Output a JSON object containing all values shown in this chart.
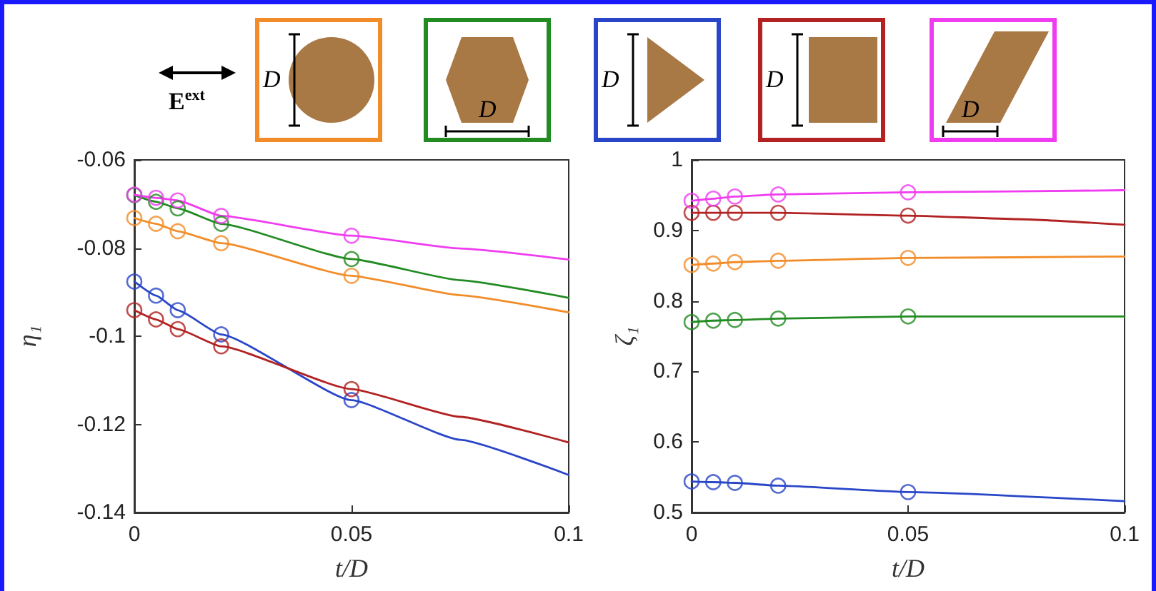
{
  "chart_data": [
    {
      "type": "line",
      "xlabel": "t/D",
      "ylabel": "η₁",
      "xlim": [
        0,
        0.1
      ],
      "ylim": [
        -0.14,
        -0.06
      ],
      "xticks": [
        0,
        0.05,
        0.1
      ],
      "yticks": [
        -0.14,
        -0.12,
        -0.1,
        -0.08,
        -0.06
      ],
      "marker": "circle",
      "line_style": "solid",
      "annotations": [
        "E$^{ext}$",
        "D",
        "D",
        "D",
        "D",
        "D"
      ],
      "series": [
        {
          "type": "scatter",
          "color": "#f28c28",
          "x": [
            0,
            0.005,
            0.01,
            0.02,
            0.05
          ],
          "values": [
            -0.0732,
            -0.0745,
            -0.0762,
            -0.0789,
            -0.0863
          ]
        },
        {
          "type": "line",
          "marker": "none",
          "color": "#f28c28",
          "x": [
            0,
            0.005,
            0.01,
            0.02,
            0.05,
            0.075,
            0.1
          ],
          "values": [
            -0.0732,
            -0.0745,
            -0.0762,
            -0.0789,
            -0.0863,
            -0.0907,
            -0.0946
          ]
        },
        {
          "type": "scatter",
          "color": "#228b22",
          "x": [
            0,
            0.005,
            0.01,
            0.02,
            0.05
          ],
          "values": [
            -0.068,
            -0.0695,
            -0.071,
            -0.0745,
            -0.0825
          ]
        },
        {
          "type": "line",
          "marker": "none",
          "color": "#228b22",
          "x": [
            0,
            0.005,
            0.01,
            0.02,
            0.05,
            0.075,
            0.1
          ],
          "values": [
            -0.068,
            -0.0695,
            -0.071,
            -0.0745,
            -0.0825,
            -0.0873,
            -0.0913
          ]
        },
        {
          "type": "scatter",
          "color": "#2a46c8",
          "x": [
            0,
            0.005,
            0.01,
            0.02,
            0.05
          ],
          "values": [
            -0.0876,
            -0.0908,
            -0.0941,
            -0.0996,
            -0.1145
          ]
        },
        {
          "type": "line",
          "marker": "none",
          "color": "#2a46c8",
          "x": [
            0,
            0.005,
            0.01,
            0.02,
            0.05,
            0.075,
            0.1
          ],
          "values": [
            -0.0876,
            -0.0908,
            -0.0941,
            -0.0996,
            -0.1145,
            -0.1235,
            -0.1315
          ]
        },
        {
          "type": "scatter",
          "color": "#b22222",
          "x": [
            0,
            0.005,
            0.01,
            0.02,
            0.05
          ],
          "values": [
            -0.0941,
            -0.0962,
            -0.0984,
            -0.1023,
            -0.112
          ]
        },
        {
          "type": "line",
          "marker": "none",
          "color": "#b22222",
          "x": [
            0,
            0.005,
            0.01,
            0.02,
            0.05,
            0.075,
            0.1
          ],
          "values": [
            -0.0941,
            -0.0962,
            -0.0984,
            -0.1023,
            -0.112,
            -0.1183,
            -0.1241
          ]
        },
        {
          "type": "scatter",
          "color": "#f03cf0",
          "x": [
            0,
            0.005,
            0.01,
            0.02,
            0.05
          ],
          "values": [
            -0.0679,
            -0.0686,
            -0.0692,
            -0.0727,
            -0.0772
          ]
        },
        {
          "type": "line",
          "marker": "none",
          "color": "#f03cf0",
          "x": [
            0,
            0.005,
            0.01,
            0.02,
            0.05,
            0.075,
            0.1
          ],
          "values": [
            -0.0679,
            -0.0686,
            -0.0692,
            -0.0727,
            -0.0772,
            -0.0801,
            -0.0826
          ]
        }
      ]
    },
    {
      "type": "line",
      "xlabel": "t/D",
      "ylabel": "ζ₁",
      "xlim": [
        0,
        0.1
      ],
      "ylim": [
        0.5,
        1
      ],
      "xticks": [
        0,
        0.05,
        0.1
      ],
      "yticks": [
        0.5,
        0.6,
        0.7,
        0.8,
        0.9,
        1
      ],
      "marker": "circle",
      "line_style": "solid",
      "series": [
        {
          "type": "scatter",
          "color": "#f28c28",
          "x": [
            0,
            0.005,
            0.01,
            0.02,
            0.05
          ],
          "values": [
            0.851,
            0.853,
            0.855,
            0.857,
            0.861
          ]
        },
        {
          "type": "line",
          "marker": "none",
          "color": "#f28c28",
          "x": [
            0,
            0.005,
            0.01,
            0.02,
            0.05,
            0.1
          ],
          "values": [
            0.851,
            0.853,
            0.855,
            0.857,
            0.861,
            0.863
          ]
        },
        {
          "type": "scatter",
          "color": "#228b22",
          "x": [
            0,
            0.005,
            0.01,
            0.02,
            0.05
          ],
          "values": [
            0.77,
            0.772,
            0.773,
            0.775,
            0.778
          ]
        },
        {
          "type": "line",
          "marker": "none",
          "color": "#228b22",
          "x": [
            0,
            0.005,
            0.01,
            0.02,
            0.05,
            0.1
          ],
          "values": [
            0.77,
            0.772,
            0.773,
            0.775,
            0.778,
            0.778
          ]
        },
        {
          "type": "scatter",
          "color": "#2a46c8",
          "x": [
            0,
            0.005,
            0.01,
            0.02,
            0.05
          ],
          "values": [
            0.544,
            0.543,
            0.542,
            0.538,
            0.529
          ]
        },
        {
          "type": "line",
          "marker": "none",
          "color": "#2a46c8",
          "x": [
            0,
            0.005,
            0.01,
            0.02,
            0.05,
            0.1
          ],
          "values": [
            0.544,
            0.543,
            0.542,
            0.538,
            0.529,
            0.516
          ]
        },
        {
          "type": "scatter",
          "color": "#b22222",
          "x": [
            0,
            0.005,
            0.01,
            0.02,
            0.05
          ],
          "values": [
            0.925,
            0.925,
            0.925,
            0.925,
            0.921
          ]
        },
        {
          "type": "line",
          "marker": "none",
          "color": "#b22222",
          "x": [
            0,
            0.005,
            0.01,
            0.02,
            0.05,
            0.075,
            0.1
          ],
          "values": [
            0.925,
            0.925,
            0.925,
            0.925,
            0.921,
            0.916,
            0.908
          ]
        },
        {
          "type": "scatter",
          "color": "#f03cf0",
          "x": [
            0,
            0.005,
            0.01,
            0.02,
            0.05
          ],
          "values": [
            0.942,
            0.945,
            0.948,
            0.951,
            0.954
          ]
        },
        {
          "type": "line",
          "marker": "none",
          "color": "#f03cf0",
          "x": [
            0,
            0.005,
            0.01,
            0.02,
            0.05,
            0.1
          ],
          "values": [
            0.942,
            0.945,
            0.948,
            0.951,
            0.954,
            0.957
          ]
        }
      ]
    }
  ]
}
